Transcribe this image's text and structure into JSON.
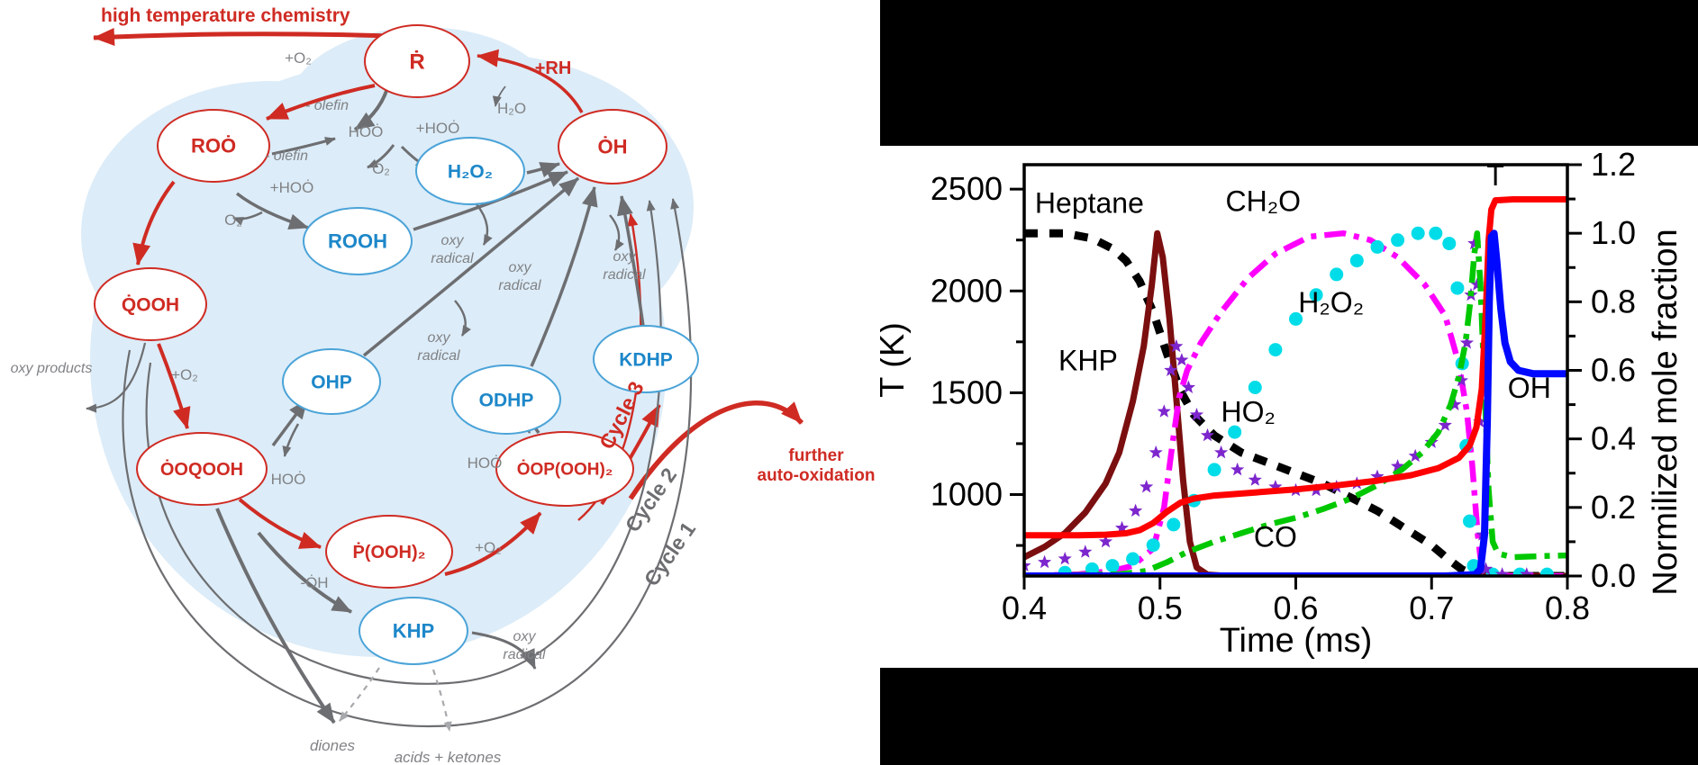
{
  "diagram": {
    "nodes": {
      "r": "Ṙ",
      "roo": "ROȮ",
      "oh": "ȮH",
      "h2o2": "H₂O₂",
      "rooh": "ROOH",
      "qooh": "Q̇OOH",
      "ohp": "OHP",
      "odhp": "ODHP",
      "kdhp": "KDHP",
      "ooqooh": "ȮOQOOH",
      "oopooh2": "ȮOP(OOH)₂",
      "pooh2": "Ṗ(OOH)₂",
      "khp": "KHP"
    },
    "labels": {
      "ht": "high temperature chemistry",
      "plus_o2": "+O₂",
      "minus_olefin": "- olefin",
      "hoo": "HOȮ",
      "plus_hoo": "+HOȮ",
      "o2": "O₂",
      "plus_rh": "+RH",
      "h2o": "H₂O",
      "oxy_radical": "oxy radical",
      "oxy_products": "oxy products",
      "minus_oh": "-ȮH",
      "diones": "diones",
      "acids_ketones": "acids + ketones",
      "cycle1": "Cycle 1",
      "cycle2": "Cycle 2",
      "cycle3": "Cycle 3",
      "further": "further auto-oxidation"
    },
    "colors": {
      "red": "#cf2b23",
      "blue": "#1d87c9",
      "gray": "#6d6e71",
      "blob": "#dcecf8"
    }
  },
  "chart_data": {
    "type": "line",
    "xlabel": "Time (ms)",
    "ylabel_left": "T (K)",
    "ylabel_right": "Normilized mole fraction",
    "x_range": [
      0.4,
      0.8
    ],
    "x_ticks": [
      "0.4",
      "0.5",
      "0.6",
      "0.7",
      "0.8"
    ],
    "left_range": [
      600,
      2620
    ],
    "left_ticks": [
      "1000",
      "1500",
      "2000",
      "2500"
    ],
    "left_minor_ticks": [
      750,
      1250,
      1750,
      2250
    ],
    "right_range": [
      0,
      1.2
    ],
    "right_ticks": [
      "0.0",
      "0.2",
      "0.4",
      "0.6",
      "0.8",
      "1.0",
      "1.2"
    ],
    "right_minor_ticks": [
      0.1,
      0.3,
      0.5,
      0.7,
      0.9,
      1.1
    ],
    "grid": false,
    "legend": "none (in-plot annotations)",
    "series": [
      {
        "name": "Heptane",
        "axis": "right",
        "color": "#000000",
        "style": "dashed",
        "width": 9,
        "points": [
          [
            0.4,
            1.0
          ],
          [
            0.43,
            1.0
          ],
          [
            0.45,
            0.985
          ],
          [
            0.465,
            0.955
          ],
          [
            0.475,
            0.92
          ],
          [
            0.485,
            0.86
          ],
          [
            0.495,
            0.77
          ],
          [
            0.505,
            0.65
          ],
          [
            0.515,
            0.54
          ],
          [
            0.525,
            0.47
          ],
          [
            0.54,
            0.41
          ],
          [
            0.56,
            0.36
          ],
          [
            0.58,
            0.33
          ],
          [
            0.6,
            0.3
          ],
          [
            0.62,
            0.27
          ],
          [
            0.64,
            0.23
          ],
          [
            0.66,
            0.19
          ],
          [
            0.68,
            0.14
          ],
          [
            0.7,
            0.09
          ],
          [
            0.712,
            0.05
          ],
          [
            0.722,
            0.02
          ],
          [
            0.73,
            0.005
          ],
          [
            0.737,
            0.0
          ],
          [
            0.8,
            0.0
          ]
        ]
      },
      {
        "name": "KHP",
        "axis": "right",
        "color": "#7b0f10",
        "style": "solid",
        "width": 7,
        "points": [
          [
            0.4,
            0.055
          ],
          [
            0.415,
            0.085
          ],
          [
            0.43,
            0.125
          ],
          [
            0.445,
            0.185
          ],
          [
            0.46,
            0.27
          ],
          [
            0.47,
            0.36
          ],
          [
            0.48,
            0.51
          ],
          [
            0.488,
            0.67
          ],
          [
            0.494,
            0.85
          ],
          [
            0.498,
            1.0
          ],
          [
            0.502,
            0.93
          ],
          [
            0.507,
            0.75
          ],
          [
            0.512,
            0.52
          ],
          [
            0.517,
            0.28
          ],
          [
            0.522,
            0.1
          ],
          [
            0.527,
            0.025
          ],
          [
            0.535,
            0.004
          ],
          [
            0.55,
            0.0
          ],
          [
            0.8,
            0.0
          ]
        ]
      },
      {
        "name": "CH₂O",
        "axis": "right",
        "color": "#ff00ff",
        "style": "dashdot",
        "width": 6.5,
        "points": [
          [
            0.4,
            0.0
          ],
          [
            0.44,
            0.005
          ],
          [
            0.465,
            0.015
          ],
          [
            0.48,
            0.03
          ],
          [
            0.495,
            0.08
          ],
          [
            0.503,
            0.2
          ],
          [
            0.509,
            0.38
          ],
          [
            0.514,
            0.52
          ],
          [
            0.52,
            0.6
          ],
          [
            0.53,
            0.68
          ],
          [
            0.545,
            0.77
          ],
          [
            0.565,
            0.87
          ],
          [
            0.585,
            0.94
          ],
          [
            0.61,
            0.99
          ],
          [
            0.635,
            1.0
          ],
          [
            0.655,
            0.98
          ],
          [
            0.675,
            0.93
          ],
          [
            0.695,
            0.85
          ],
          [
            0.71,
            0.76
          ],
          [
            0.72,
            0.62
          ],
          [
            0.726,
            0.48
          ],
          [
            0.73,
            0.32
          ],
          [
            0.734,
            0.12
          ],
          [
            0.737,
            0.02
          ],
          [
            0.74,
            0.0
          ],
          [
            0.8,
            0.0
          ]
        ]
      },
      {
        "name": "H₂O₂",
        "axis": "right",
        "color": "#00dde8",
        "style": "dots",
        "width": 7.5,
        "points": [
          [
            0.43,
            0.01
          ],
          [
            0.45,
            0.02
          ],
          [
            0.465,
            0.03
          ],
          [
            0.48,
            0.05
          ],
          [
            0.495,
            0.09
          ],
          [
            0.51,
            0.15
          ],
          [
            0.525,
            0.22
          ],
          [
            0.54,
            0.31
          ],
          [
            0.555,
            0.42
          ],
          [
            0.57,
            0.55
          ],
          [
            0.585,
            0.66
          ],
          [
            0.6,
            0.75
          ],
          [
            0.615,
            0.82
          ],
          [
            0.63,
            0.88
          ],
          [
            0.645,
            0.92
          ],
          [
            0.66,
            0.96
          ],
          [
            0.675,
            0.98
          ],
          [
            0.69,
            1.0
          ],
          [
            0.703,
            1.0
          ],
          [
            0.713,
            0.97
          ],
          [
            0.719,
            0.84
          ],
          [
            0.7225,
            0.62
          ],
          [
            0.7255,
            0.38
          ],
          [
            0.728,
            0.16
          ],
          [
            0.731,
            0.03
          ],
          [
            0.745,
            0.005
          ],
          [
            0.765,
            0.005
          ],
          [
            0.785,
            0.005
          ]
        ]
      },
      {
        "name": "HO₂",
        "axis": "right",
        "color": "#7d26cd",
        "style": "stars",
        "width": 8,
        "points": [
          [
            0.4,
            0.03
          ],
          [
            0.415,
            0.04
          ],
          [
            0.43,
            0.05
          ],
          [
            0.445,
            0.07
          ],
          [
            0.46,
            0.1
          ],
          [
            0.472,
            0.14
          ],
          [
            0.482,
            0.19
          ],
          [
            0.49,
            0.26
          ],
          [
            0.497,
            0.36
          ],
          [
            0.503,
            0.48
          ],
          [
            0.508,
            0.6
          ],
          [
            0.512,
            0.67
          ],
          [
            0.516,
            0.63
          ],
          [
            0.521,
            0.55
          ],
          [
            0.527,
            0.47
          ],
          [
            0.535,
            0.41
          ],
          [
            0.545,
            0.36
          ],
          [
            0.557,
            0.31
          ],
          [
            0.57,
            0.28
          ],
          [
            0.585,
            0.26
          ],
          [
            0.6,
            0.25
          ],
          [
            0.615,
            0.25
          ],
          [
            0.63,
            0.26
          ],
          [
            0.645,
            0.27
          ],
          [
            0.66,
            0.29
          ],
          [
            0.675,
            0.32
          ],
          [
            0.688,
            0.35
          ],
          [
            0.7,
            0.39
          ],
          [
            0.71,
            0.44
          ],
          [
            0.717,
            0.5
          ],
          [
            0.722,
            0.57
          ],
          [
            0.726,
            0.68
          ],
          [
            0.729,
            0.82
          ],
          [
            0.7315,
            0.97
          ],
          [
            0.7335,
            0.85
          ],
          [
            0.7355,
            0.45
          ],
          [
            0.7375,
            0.12
          ],
          [
            0.74,
            0.02
          ],
          [
            0.752,
            0.005
          ],
          [
            0.77,
            0.005
          ]
        ]
      },
      {
        "name": "CO",
        "axis": "right",
        "color": "#00c800",
        "style": "dashdot",
        "width": 6.5,
        "points": [
          [
            0.4,
            0.0
          ],
          [
            0.47,
            0.005
          ],
          [
            0.49,
            0.015
          ],
          [
            0.505,
            0.04
          ],
          [
            0.52,
            0.07
          ],
          [
            0.54,
            0.1
          ],
          [
            0.56,
            0.125
          ],
          [
            0.58,
            0.15
          ],
          [
            0.6,
            0.17
          ],
          [
            0.62,
            0.195
          ],
          [
            0.64,
            0.225
          ],
          [
            0.66,
            0.265
          ],
          [
            0.678,
            0.31
          ],
          [
            0.693,
            0.36
          ],
          [
            0.705,
            0.42
          ],
          [
            0.714,
            0.5
          ],
          [
            0.72,
            0.58
          ],
          [
            0.725,
            0.68
          ],
          [
            0.7285,
            0.8
          ],
          [
            0.7315,
            0.94
          ],
          [
            0.7335,
            1.0
          ],
          [
            0.736,
            0.85
          ],
          [
            0.739,
            0.55
          ],
          [
            0.742,
            0.25
          ],
          [
            0.745,
            0.1
          ],
          [
            0.749,
            0.065
          ],
          [
            0.76,
            0.055
          ],
          [
            0.78,
            0.058
          ],
          [
            0.8,
            0.06
          ]
        ]
      },
      {
        "name": "T",
        "axis": "left",
        "color": "#ff0000",
        "style": "solid",
        "width": 7,
        "points": [
          [
            0.4,
            800
          ],
          [
            0.44,
            800
          ],
          [
            0.46,
            803
          ],
          [
            0.475,
            810
          ],
          [
            0.485,
            825
          ],
          [
            0.495,
            860
          ],
          [
            0.505,
            915
          ],
          [
            0.515,
            960
          ],
          [
            0.525,
            980
          ],
          [
            0.54,
            995
          ],
          [
            0.57,
            1010
          ],
          [
            0.6,
            1025
          ],
          [
            0.63,
            1045
          ],
          [
            0.66,
            1068
          ],
          [
            0.685,
            1095
          ],
          [
            0.705,
            1130
          ],
          [
            0.72,
            1180
          ],
          [
            0.728,
            1240
          ],
          [
            0.733,
            1330
          ],
          [
            0.737,
            1520
          ],
          [
            0.74,
            1900
          ],
          [
            0.742,
            2250
          ],
          [
            0.744,
            2400
          ],
          [
            0.747,
            2445
          ],
          [
            0.76,
            2450
          ],
          [
            0.8,
            2450
          ]
        ]
      },
      {
        "name": "OH",
        "axis": "right",
        "color": "#0008ff",
        "style": "solid",
        "width": 8,
        "points": [
          [
            0.4,
            0.0
          ],
          [
            0.71,
            0.0
          ],
          [
            0.732,
            0.004
          ],
          [
            0.736,
            0.02
          ],
          [
            0.739,
            0.12
          ],
          [
            0.741,
            0.45
          ],
          [
            0.7425,
            0.8
          ],
          [
            0.744,
            0.99
          ],
          [
            0.746,
            1.0
          ],
          [
            0.748,
            0.92
          ],
          [
            0.751,
            0.78
          ],
          [
            0.754,
            0.68
          ],
          [
            0.758,
            0.625
          ],
          [
            0.764,
            0.6
          ],
          [
            0.775,
            0.59
          ],
          [
            0.8,
            0.59
          ]
        ]
      }
    ],
    "annotations": [
      {
        "text": "Heptane",
        "t": 0.448,
        "v": 1.06
      },
      {
        "text": "CH₂O",
        "t": 0.576,
        "v": 1.065
      },
      {
        "text": "T",
        "t": 0.747,
        "v": 1.14
      },
      {
        "text": "KHP",
        "t": 0.447,
        "v": 0.6
      },
      {
        "text": "H₂O₂",
        "t": 0.626,
        "v": 0.77
      },
      {
        "text": "HO₂",
        "t": 0.565,
        "v": 0.45
      },
      {
        "text": "CO",
        "t": 0.585,
        "v": 0.085
      },
      {
        "text": "OH",
        "t": 0.772,
        "v": 0.52
      }
    ]
  }
}
